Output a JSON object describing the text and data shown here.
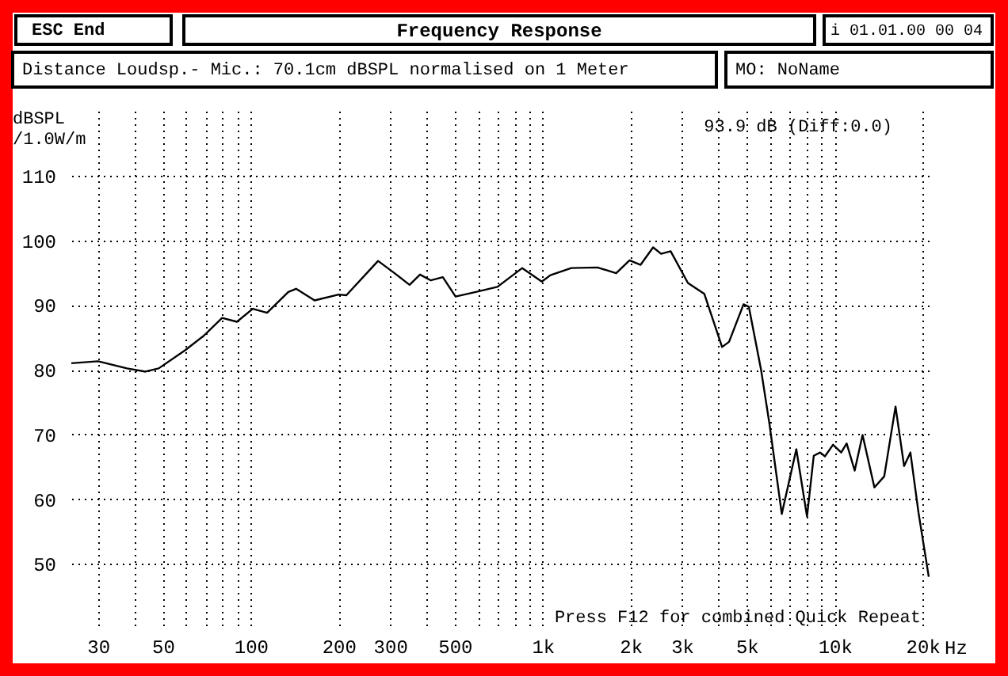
{
  "chart_data": {
    "type": "line",
    "title": "Frequency Response",
    "ylabel": "dBSPL /1.0W/m",
    "annotations": [
      "ESC End",
      "i 01.01.00 00 04",
      "Distance Loudsp.- Mic.: 70.1cm dBSPL normalised on 1 Meter",
      "MO: NoName",
      "93.9 dB (Diff:0.0)",
      "Press F12 for combined Quick Repeat"
    ],
    "x": [
      24.3,
      30,
      37.7,
      43.6,
      48.4,
      59.6,
      68.9,
      79.8,
      89.7,
      101.6,
      113.8,
      134.5,
      143,
      165.5,
      200,
      212.6,
      273,
      309,
      350,
      380,
      414,
      455,
      503,
      590,
      700,
      851,
      993,
      1063,
      1253,
      1540,
      1785,
      1984,
      2164,
      2389,
      2544,
      2743,
      3143,
      3578,
      4115,
      4347,
      4875,
      5083,
      5600,
      5980,
      6590,
      7390,
      8040,
      8480,
      8920,
      9260,
      9870,
      10530,
      10990,
      11710,
      12460,
      13680,
      14780,
      16160,
      17290,
      18170,
      19370,
      21000
    ],
    "series": [
      {
        "color": "#000000",
        "values": [
          81.0,
          81.3,
          80.2,
          79.7,
          80.2,
          83.0,
          85.2,
          88.0,
          87.4,
          89.4,
          88.8,
          92.0,
          92.5,
          90.7,
          91.6,
          91.5,
          96.8,
          95.0,
          93.1,
          94.7,
          93.8,
          94.3,
          91.3,
          92.0,
          92.8,
          95.7,
          93.6,
          94.6,
          95.7,
          95.8,
          94.9,
          96.9,
          96.2,
          98.9,
          97.9,
          98.3,
          93.4,
          91.7,
          83.5,
          84.3,
          90.1,
          89.7,
          79.9,
          71.6,
          57.7,
          67.7,
          57.3,
          66.7,
          67.2,
          66.6,
          68.4,
          67.2,
          68.6,
          64.4,
          69.9,
          61.8,
          63.5,
          74.3,
          65.1,
          67.2,
          57.9,
          48.0
        ]
      }
    ],
    "log": "x",
    "xlim": [
      24.3,
      21000
    ],
    "ylim": [
      40,
      120
    ],
    "xticks": [
      30,
      {
        "value": 40,
        "label": null
      },
      50,
      {
        "value": 60,
        "label": null
      },
      {
        "value": 70,
        "label": null
      },
      {
        "value": 80,
        "label": null
      },
      {
        "value": 90,
        "label": null
      },
      100,
      200,
      300,
      {
        "value": 400,
        "label": null
      },
      500,
      {
        "value": 600,
        "label": null
      },
      {
        "value": 700,
        "label": null
      },
      {
        "value": 800,
        "label": null
      },
      {
        "value": 900,
        "label": null
      },
      {
        "value": 1000,
        "label": "1k"
      },
      {
        "value": 2000,
        "label": "2k"
      },
      {
        "value": 3000,
        "label": "3k"
      },
      {
        "value": 4000,
        "label": null
      },
      {
        "value": 5000,
        "label": "5k"
      },
      {
        "value": 6000,
        "label": null
      },
      {
        "value": 7000,
        "label": null
      },
      {
        "value": 8000,
        "label": null
      },
      {
        "value": 9000,
        "label": null
      },
      {
        "value": 10000,
        "label": "10k"
      },
      {
        "value": 20000,
        "label": "20k"
      }
    ],
    "xlabel": "Hz",
    "yticks": [
      50,
      60,
      70,
      80,
      90,
      100,
      110
    ],
    "grid": true,
    "line_style": "solid",
    "marker": "none"
  }
}
